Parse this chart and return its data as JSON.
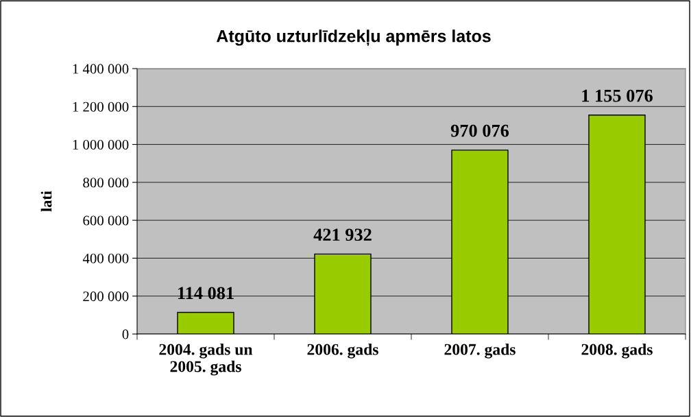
{
  "chart_data": {
    "type": "bar",
    "title": "Atgūto uzturlīdzekļu apmērs latos",
    "ylabel": "lati",
    "categories": [
      "2004. gads un\n2005. gads",
      "2006. gads",
      "2007. gads",
      "2008. gads"
    ],
    "values": [
      114081,
      421932,
      970076,
      1155076
    ],
    "value_labels": [
      "114 081",
      "421 932",
      "970 076",
      "1 155 076"
    ],
    "color": "#99cc00",
    "ylim": [
      0,
      1400000
    ],
    "yticks": [
      0,
      {
        "value": 200000,
        "label": "200 000"
      },
      {
        "value": 400000,
        "label": "400 000"
      },
      {
        "value": 600000,
        "label": "600 000"
      },
      {
        "value": 800000,
        "label": "800 000"
      },
      {
        "value": 1000000,
        "label": "1 000 000"
      },
      {
        "value": 1200000,
        "label": "1 200 000"
      },
      {
        "value": 1400000,
        "label": "1 400 000"
      }
    ],
    "grid": "y",
    "legend": false
  }
}
